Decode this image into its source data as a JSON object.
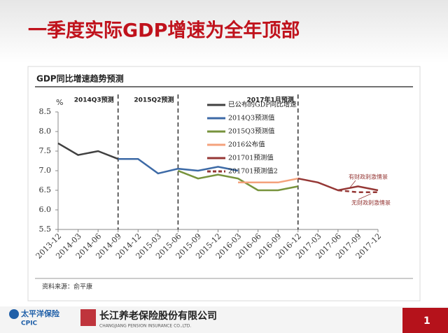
{
  "slide": {
    "title": "一季度实际GDP增速为全年顶部",
    "source": "资料来源：俞平康",
    "footer": {
      "brand": "太平洋保险",
      "brand_en": "CPIC",
      "company": "长江养老保险股份有限公司",
      "company_en": "CHANGJIANG PENSION INSURANCE CO.,LTD.",
      "page": "1"
    }
  },
  "chart_data": {
    "type": "line",
    "title": "GDP同比增速趋势预测",
    "y_unit": "%",
    "categories": [
      "2013-12",
      "2014-03",
      "2014-06",
      "2014-09",
      "2014-12",
      "2015-03",
      "2015-06",
      "2015-09",
      "2015-12",
      "2016-03",
      "2016-06",
      "2016-09",
      "2016-12",
      "2017-03",
      "2017-06",
      "2017-09",
      "2017-12"
    ],
    "ylim": [
      5.5,
      8.5
    ],
    "yticks": [
      {
        "value": 5.5,
        "label": "5.5"
      },
      {
        "value": 6,
        "label": "6.0"
      },
      {
        "value": 6.5,
        "label": "6.5"
      },
      {
        "value": 7,
        "label": "7.0"
      },
      {
        "value": 7.5,
        "label": "7.5"
      },
      {
        "value": 8,
        "label": "8.0"
      },
      {
        "value": 8.5,
        "label": "8.5"
      }
    ],
    "series": [
      {
        "name": "已公布的GDP同比增速",
        "color": "#404040",
        "dash": false,
        "values": [
          7.7,
          7.4,
          7.5,
          7.3,
          null,
          null,
          null,
          null,
          null,
          null,
          null,
          null,
          null,
          null,
          null,
          null,
          null
        ]
      },
      {
        "name": "2014Q3预测值",
        "color": "#3d6aa6",
        "dash": false,
        "values": [
          null,
          null,
          null,
          7.3,
          7.3,
          6.93,
          7.05,
          7.0,
          7.1,
          7.0,
          null,
          null,
          null,
          null,
          null,
          null,
          null
        ]
      },
      {
        "name": "2015Q3预测值",
        "color": "#77933c",
        "dash": false,
        "values": [
          null,
          null,
          null,
          null,
          null,
          null,
          7.0,
          6.8,
          6.9,
          6.8,
          6.5,
          6.5,
          6.6,
          null,
          null,
          null,
          null
        ]
      },
      {
        "name": "2016公布值",
        "color": "#f4a27c",
        "dash": false,
        "values": [
          null,
          null,
          null,
          null,
          null,
          null,
          null,
          null,
          null,
          6.7,
          6.7,
          6.7,
          6.8,
          null,
          null,
          null,
          null
        ]
      },
      {
        "name": "201701预测值",
        "color": "#953735",
        "dash": false,
        "values": [
          null,
          null,
          null,
          null,
          null,
          null,
          null,
          null,
          null,
          null,
          null,
          null,
          6.8,
          6.7,
          6.5,
          6.6,
          6.5
        ]
      },
      {
        "name": "201701预测值2",
        "color": "#953735",
        "dash": true,
        "values": [
          null,
          null,
          null,
          null,
          null,
          null,
          null,
          null,
          null,
          null,
          null,
          null,
          null,
          null,
          6.5,
          6.45,
          6.45
        ]
      }
    ],
    "markers": [
      {
        "x": "2014-09",
        "label": "2014Q3预测"
      },
      {
        "x": "2015-06",
        "label": "2015Q2预测"
      },
      {
        "x": "2016-12",
        "label": "2017年1月预测"
      }
    ],
    "annotations": [
      "有财政刺激情景",
      "无财政刺激情景"
    ]
  }
}
